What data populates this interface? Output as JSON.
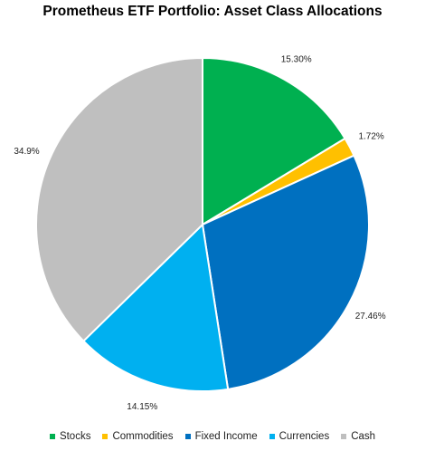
{
  "chart_data": {
    "type": "pie",
    "title": "Prometheus ETF Portfolio: Asset Class Allocations",
    "slices": [
      {
        "label": "Stocks",
        "value": 15.3,
        "display": "15.30%",
        "color": "#00B050"
      },
      {
        "label": "Commodities",
        "value": 1.72,
        "display": "1.72%",
        "color": "#FFC000"
      },
      {
        "label": "Fixed Income",
        "value": 27.46,
        "display": "27.46%",
        "color": "#0070C0"
      },
      {
        "label": "Currencies",
        "value": 14.15,
        "display": "14.15%",
        "color": "#00B0F0"
      },
      {
        "label": "Cash",
        "value": 34.9,
        "display": "34.9%",
        "color": "#BFBFBF"
      }
    ],
    "legend_position": "bottom"
  }
}
